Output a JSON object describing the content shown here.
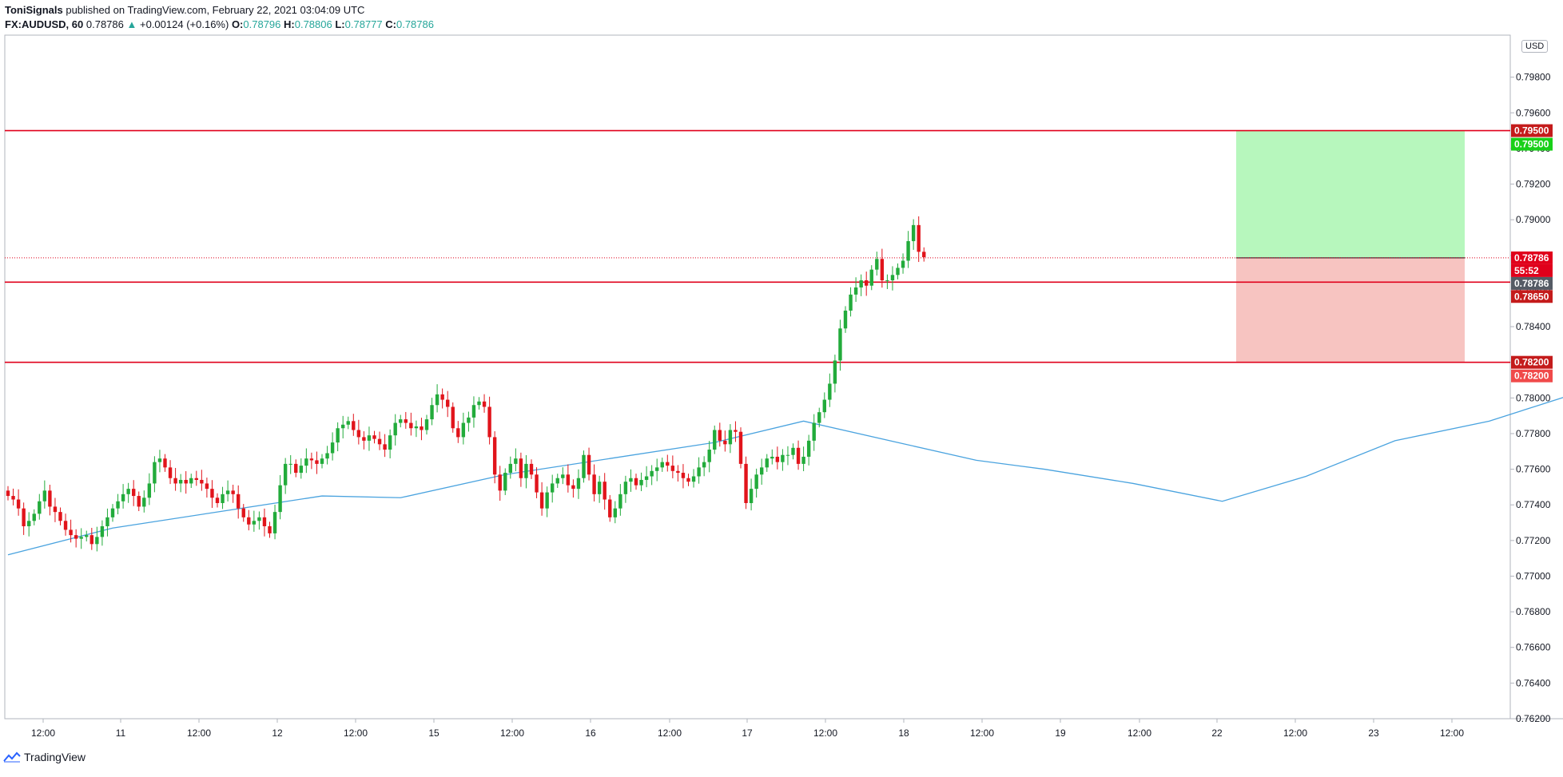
{
  "header": {
    "author": "ToniSignals",
    "published": "published on TradingView.com, February 22, 2021 03:04:09 UTC",
    "symbol": "FX:AUDUSD, 60",
    "last": "0.78786",
    "change": "+0.00124 (+0.16%)",
    "o_label": "O:",
    "o_value": "0.78796",
    "h_label": "H:",
    "h_value": "0.78806",
    "l_label": "L:",
    "l_value": "0.78777",
    "c_label": "C:",
    "c_value": "0.78786"
  },
  "currency_badge": "USD",
  "footer": {
    "brand": "TradingView"
  },
  "colors": {
    "up": "#26a69a",
    "down": "#ef5350",
    "upCandle": "#22ab3b",
    "downCandle": "#e1141b",
    "ma": "#4aa3df",
    "level": "#e0001b",
    "profit": "#b7f7bd",
    "loss": "#f7c4c1",
    "grid": "#e0e3eb"
  },
  "chart_data": {
    "type": "candlestick",
    "symbol": "FX:AUDUSD",
    "interval": "60",
    "ylim": [
      0.762,
      0.8
    ],
    "y_ticks": [
      "0.76200",
      "0.76400",
      "0.76600",
      "0.76800",
      "0.77000",
      "0.77200",
      "0.77400",
      "0.77600",
      "0.77800",
      "0.78000",
      "0.78200",
      "0.78400",
      "0.78600",
      "0.78800",
      "0.79000",
      "0.79200",
      "0.79400",
      "0.79600",
      "0.79800"
    ],
    "x_ticks": [
      "12:00",
      "11",
      "12:00",
      "12",
      "12:00",
      "15",
      "12:00",
      "16",
      "12:00",
      "17",
      "12:00",
      "18",
      "12:00",
      "19",
      "12:00",
      "22",
      "12:00",
      "23",
      "12:00"
    ],
    "close_prices": [
      0.7745,
      0.7743,
      0.7738,
      0.7728,
      0.7731,
      0.7735,
      0.7742,
      0.7748,
      0.7739,
      0.7736,
      0.7731,
      0.7726,
      0.7723,
      0.7721,
      0.7722,
      0.7723,
      0.7718,
      0.7722,
      0.7728,
      0.7733,
      0.7738,
      0.7742,
      0.7746,
      0.7749,
      0.7745,
      0.7739,
      0.7744,
      0.7752,
      0.7764,
      0.7766,
      0.7761,
      0.7755,
      0.7752,
      0.7754,
      0.7752,
      0.7755,
      0.7754,
      0.7752,
      0.7749,
      0.7744,
      0.7741,
      0.7746,
      0.7748,
      0.7746,
      0.7738,
      0.7733,
      0.7729,
      0.7731,
      0.7733,
      0.7728,
      0.7724,
      0.7736,
      0.7751,
      0.7763,
      0.7763,
      0.7758,
      0.7762,
      0.7766,
      0.7765,
      0.7763,
      0.7766,
      0.7769,
      0.7775,
      0.7783,
      0.7785,
      0.7787,
      0.7782,
      0.7778,
      0.7776,
      0.7779,
      0.7777,
      0.7774,
      0.7771,
      0.7779,
      0.7786,
      0.7788,
      0.7786,
      0.7783,
      0.7784,
      0.7782,
      0.7788,
      0.7796,
      0.7802,
      0.7799,
      0.7795,
      0.7783,
      0.7778,
      0.7786,
      0.7789,
      0.7796,
      0.7798,
      0.7795,
      0.7778,
      0.7757,
      0.7748,
      0.7758,
      0.7763,
      0.7766,
      0.7755,
      0.7763,
      0.7757,
      0.7747,
      0.7738,
      0.7747,
      0.7752,
      0.7755,
      0.7757,
      0.7751,
      0.7749,
      0.7755,
      0.7768,
      0.7757,
      0.7746,
      0.7753,
      0.7743,
      0.7733,
      0.7738,
      0.7746,
      0.7753,
      0.7755,
      0.7751,
      0.7754,
      0.7756,
      0.7759,
      0.7761,
      0.7764,
      0.7762,
      0.7759,
      0.7758,
      0.7755,
      0.7753,
      0.7756,
      0.7761,
      0.7764,
      0.7771,
      0.7782,
      0.7776,
      0.7774,
      0.7782,
      0.7781,
      0.7763,
      0.7741,
      0.7749,
      0.7757,
      0.7761,
      0.7766,
      0.7767,
      0.7764,
      0.7768,
      0.7768,
      0.7772,
      0.7763,
      0.7767,
      0.7776,
      0.7786,
      0.7792,
      0.7799,
      0.7808,
      0.7821,
      0.7839,
      0.7849,
      0.7858,
      0.7862,
      0.7866,
      0.7863,
      0.7872,
      0.7878,
      0.7866,
      0.7866,
      0.7869,
      0.7873,
      0.7877,
      0.7888,
      0.7897,
      0.7882,
      0.7879
    ],
    "moving_average": {
      "name": "",
      "values": [
        {
          "x": 0,
          "y": 0.7712
        },
        {
          "x": 20,
          "y": 0.7727
        },
        {
          "x": 40,
          "y": 0.7736
        },
        {
          "x": 60,
          "y": 0.7745
        },
        {
          "x": 75,
          "y": 0.7744
        },
        {
          "x": 95,
          "y": 0.7757
        },
        {
          "x": 115,
          "y": 0.7766
        },
        {
          "x": 135,
          "y": 0.7775
        },
        {
          "x": 152,
          "y": 0.7787
        },
        {
          "x": 170,
          "y": 0.7775
        },
        {
          "x": 185,
          "y": 0.7765
        },
        {
          "x": 198,
          "y": 0.776
        },
        {
          "x": 215,
          "y": 0.7752
        },
        {
          "x": 232,
          "y": 0.7742
        },
        {
          "x": 248,
          "y": 0.7756
        },
        {
          "x": 265,
          "y": 0.7776
        },
        {
          "x": 283,
          "y": 0.7787
        },
        {
          "x": 299,
          "y": 0.7802
        },
        {
          "x": 315,
          "y": 0.7822
        },
        {
          "x": 330,
          "y": 0.786
        },
        {
          "x": 340,
          "y": 0.7873
        }
      ]
    },
    "horizontal_levels": [
      {
        "price": 0.795,
        "label": "0.79500"
      },
      {
        "price": 0.7865,
        "label": "0.78650"
      },
      {
        "price": 0.782,
        "label": "0.78200"
      }
    ],
    "position": {
      "entry": 0.78786,
      "target": 0.795,
      "stop": 0.782,
      "target_label": "0.79500",
      "stop_label": "0.78200",
      "entry_label": "0.78786"
    },
    "last_price_label": "0.78786",
    "countdown_label": "55:52",
    "current_price_label": "0.78786"
  }
}
